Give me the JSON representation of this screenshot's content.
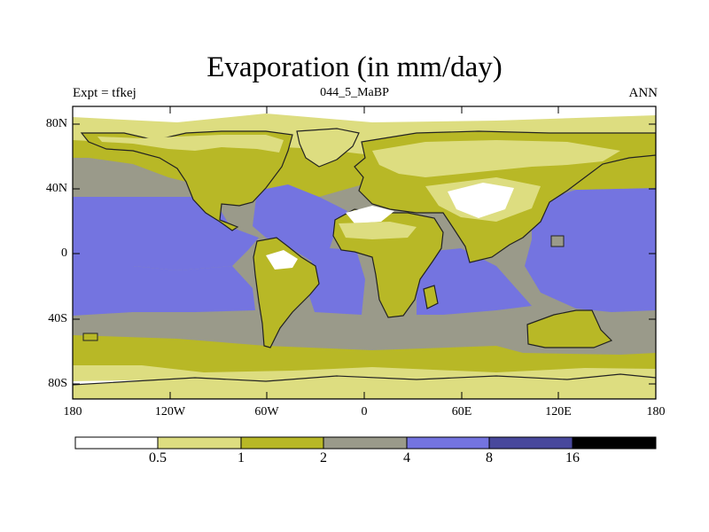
{
  "title": "Evaporation (in mm/day)",
  "subtitle_left": "Expt = tfkej",
  "subtitle_center": "044_5_MaBP",
  "subtitle_right": "ANN",
  "y_ticks": [
    "80N",
    "40N",
    "0",
    "40S",
    "80S"
  ],
  "x_ticks": [
    "180",
    "120W",
    "60W",
    "0",
    "60E",
    "120E",
    "180"
  ],
  "colorbar": {
    "levels": [
      "0.5",
      "1",
      "2",
      "4",
      "8",
      "16"
    ],
    "colors": [
      "#ffffff",
      "#dddd80",
      "#b8b826",
      "#9a9a8a",
      "#7474e0",
      "#48489c",
      "#000000"
    ]
  }
}
